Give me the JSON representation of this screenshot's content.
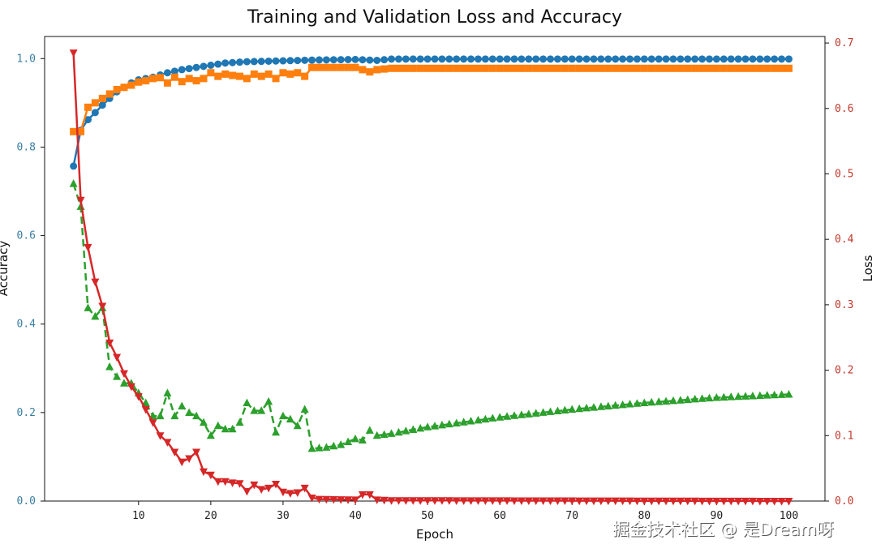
{
  "watermark": "掘金技术社区 @ 是Dream呀",
  "chart_data": {
    "type": "line",
    "title": "Training and Validation Loss and Accuracy",
    "xlabel": "Epoch",
    "ylabel_left": "Accuracy",
    "ylabel_right": "Loss",
    "xlim": [
      -3,
      105
    ],
    "ylim_left": [
      0,
      1.05
    ],
    "ylim_right": [
      0,
      0.71
    ],
    "x_ticks": [
      10,
      20,
      30,
      40,
      50,
      60,
      70,
      80,
      90,
      100
    ],
    "y_ticks_left": [
      "0.0",
      "0.2",
      "0.4",
      "0.6",
      "0.8",
      "1.0"
    ],
    "y_ticks_right": [
      "0.0",
      "0.1",
      "0.2",
      "0.3",
      "0.4",
      "0.5",
      "0.6",
      "0.7"
    ],
    "grid": false,
    "legend": "none",
    "colors": {
      "blue": "#1f77b4",
      "orange": "#ff7f0e",
      "green": "#2ca02c",
      "red": "#d62728",
      "left_ticks": "#3a7fa0",
      "right_ticks": "#c0392b"
    },
    "series": [
      {
        "axis": "left",
        "color": "blue",
        "marker": "circle",
        "linestyle": "solid",
        "keypoints": [
          [
            1,
            0.757
          ],
          [
            2,
            0.838
          ],
          [
            3,
            0.862
          ],
          [
            4,
            0.878
          ],
          [
            5,
            0.895
          ],
          [
            6,
            0.91
          ],
          [
            7,
            0.925
          ],
          [
            8,
            0.935
          ],
          [
            9,
            0.945
          ],
          [
            10,
            0.952
          ],
          [
            12,
            0.958
          ],
          [
            14,
            0.968
          ],
          [
            16,
            0.975
          ],
          [
            18,
            0.98
          ],
          [
            20,
            0.985
          ],
          [
            22,
            0.99
          ],
          [
            25,
            0.993
          ],
          [
            30,
            0.995
          ],
          [
            35,
            0.997
          ],
          [
            40,
            0.998
          ],
          [
            43,
            0.996
          ],
          [
            45,
            0.999
          ],
          [
            100,
            0.999
          ]
        ]
      },
      {
        "axis": "left",
        "color": "orange",
        "marker": "square",
        "linestyle": "solid",
        "keypoints": [
          [
            1,
            0.835
          ],
          [
            2,
            0.835
          ],
          [
            3,
            0.89
          ],
          [
            4,
            0.9
          ],
          [
            5,
            0.91
          ],
          [
            6,
            0.92
          ],
          [
            7,
            0.93
          ],
          [
            8,
            0.935
          ],
          [
            9,
            0.94
          ],
          [
            10,
            0.947
          ],
          [
            11,
            0.95
          ],
          [
            12,
            0.955
          ],
          [
            13,
            0.957
          ],
          [
            14,
            0.945
          ],
          [
            15,
            0.958
          ],
          [
            16,
            0.948
          ],
          [
            17,
            0.955
          ],
          [
            18,
            0.95
          ],
          [
            19,
            0.955
          ],
          [
            20,
            0.968
          ],
          [
            21,
            0.96
          ],
          [
            22,
            0.965
          ],
          [
            23,
            0.962
          ],
          [
            24,
            0.96
          ],
          [
            25,
            0.955
          ],
          [
            26,
            0.965
          ],
          [
            27,
            0.96
          ],
          [
            28,
            0.965
          ],
          [
            29,
            0.955
          ],
          [
            30,
            0.968
          ],
          [
            31,
            0.965
          ],
          [
            32,
            0.968
          ],
          [
            33,
            0.96
          ],
          [
            34,
            0.98
          ],
          [
            35,
            0.98
          ],
          [
            40,
            0.98
          ],
          [
            41,
            0.975
          ],
          [
            42,
            0.97
          ],
          [
            43,
            0.975
          ],
          [
            45,
            0.978
          ],
          [
            100,
            0.978
          ]
        ]
      },
      {
        "axis": "right",
        "color": "green",
        "marker": "triangle-up",
        "linestyle": "dashed",
        "keypoints": [
          [
            1,
            0.485
          ],
          [
            2,
            0.45
          ],
          [
            3,
            0.295
          ],
          [
            4,
            0.282
          ],
          [
            5,
            0.295
          ],
          [
            6,
            0.205
          ],
          [
            7,
            0.19
          ],
          [
            8,
            0.18
          ],
          [
            9,
            0.18
          ],
          [
            10,
            0.165
          ],
          [
            11,
            0.15
          ],
          [
            12,
            0.13
          ],
          [
            13,
            0.13
          ],
          [
            14,
            0.165
          ],
          [
            15,
            0.13
          ],
          [
            16,
            0.145
          ],
          [
            17,
            0.135
          ],
          [
            18,
            0.13
          ],
          [
            19,
            0.12
          ],
          [
            20,
            0.1
          ],
          [
            21,
            0.115
          ],
          [
            22,
            0.11
          ],
          [
            23,
            0.11
          ],
          [
            24,
            0.12
          ],
          [
            25,
            0.15
          ],
          [
            26,
            0.138
          ],
          [
            27,
            0.138
          ],
          [
            28,
            0.152
          ],
          [
            29,
            0.105
          ],
          [
            30,
            0.13
          ],
          [
            31,
            0.125
          ],
          [
            32,
            0.115
          ],
          [
            33,
            0.14
          ],
          [
            34,
            0.08
          ],
          [
            36,
            0.082
          ],
          [
            38,
            0.086
          ],
          [
            40,
            0.095
          ],
          [
            41,
            0.093
          ],
          [
            42,
            0.108
          ],
          [
            43,
            0.1
          ],
          [
            45,
            0.103
          ],
          [
            50,
            0.113
          ],
          [
            60,
            0.128
          ],
          [
            70,
            0.14
          ],
          [
            80,
            0.15
          ],
          [
            90,
            0.158
          ],
          [
            100,
            0.163
          ]
        ]
      },
      {
        "axis": "right",
        "color": "red",
        "marker": "triangle-down",
        "linestyle": "solid",
        "keypoints": [
          [
            1,
            0.685
          ],
          [
            2,
            0.46
          ],
          [
            3,
            0.388
          ],
          [
            4,
            0.335
          ],
          [
            5,
            0.298
          ],
          [
            6,
            0.242
          ],
          [
            7,
            0.22
          ],
          [
            8,
            0.195
          ],
          [
            9,
            0.175
          ],
          [
            10,
            0.16
          ],
          [
            11,
            0.14
          ],
          [
            12,
            0.12
          ],
          [
            13,
            0.1
          ],
          [
            14,
            0.09
          ],
          [
            15,
            0.075
          ],
          [
            16,
            0.06
          ],
          [
            17,
            0.065
          ],
          [
            18,
            0.075
          ],
          [
            19,
            0.045
          ],
          [
            20,
            0.04
          ],
          [
            21,
            0.03
          ],
          [
            22,
            0.03
          ],
          [
            23,
            0.028
          ],
          [
            24,
            0.027
          ],
          [
            25,
            0.015
          ],
          [
            26,
            0.025
          ],
          [
            27,
            0.018
          ],
          [
            28,
            0.02
          ],
          [
            29,
            0.026
          ],
          [
            30,
            0.014
          ],
          [
            31,
            0.012
          ],
          [
            32,
            0.013
          ],
          [
            33,
            0.02
          ],
          [
            34,
            0.005
          ],
          [
            35,
            0.003
          ],
          [
            40,
            0.002
          ],
          [
            41,
            0.01
          ],
          [
            42,
            0.01
          ],
          [
            43,
            0.002
          ],
          [
            45,
            0.001
          ],
          [
            100,
            0.0
          ]
        ]
      }
    ]
  }
}
